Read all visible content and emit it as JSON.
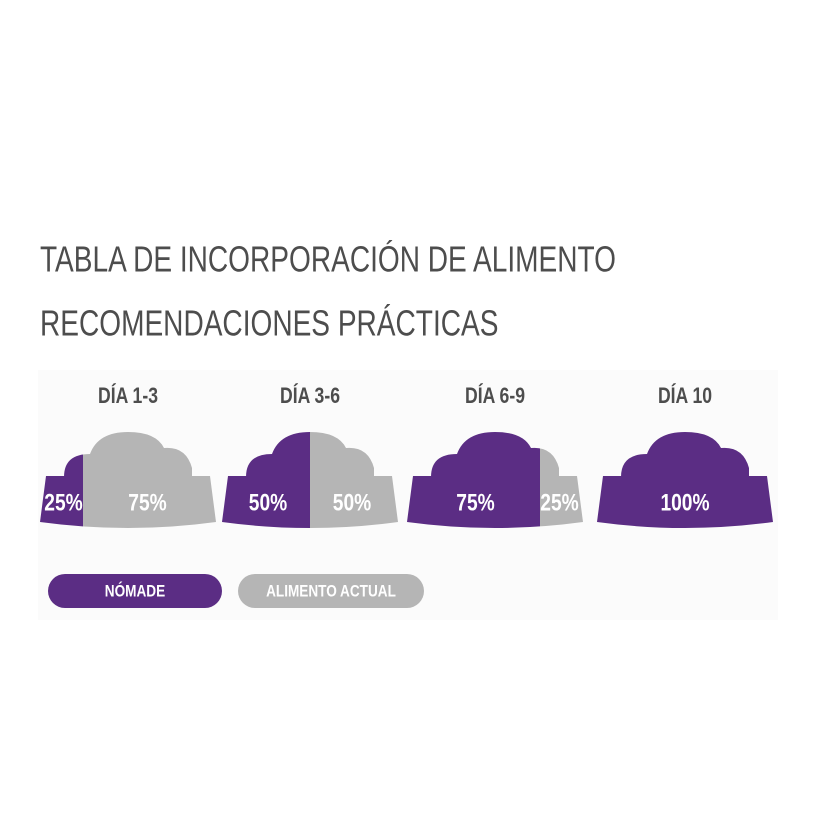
{
  "header": {
    "title": "TABLA DE INCORPORACIÓN DE ALIMENTO",
    "subtitle": "RECOMENDACIONES PRÁCTICAS"
  },
  "legend": [
    {
      "label": "NÓMADE",
      "color": "#5b2d84"
    },
    {
      "label": "ALIMENTO ACTUAL",
      "color": "#b5b5b5"
    }
  ],
  "bowls": [
    {
      "day": "DÍA 1-3",
      "segments": [
        {
          "value": 25,
          "label": "25%"
        },
        {
          "value": 75,
          "label": "75%"
        }
      ]
    },
    {
      "day": "DÍA 3-6",
      "segments": [
        {
          "value": 50,
          "label": "50%"
        },
        {
          "value": 50,
          "label": "50%"
        }
      ]
    },
    {
      "day": "DÍA 6-9",
      "segments": [
        {
          "value": 75,
          "label": "75%"
        },
        {
          "value": 25,
          "label": "25%"
        }
      ]
    },
    {
      "day": "DÍA 10",
      "segments": [
        {
          "value": 100,
          "label": "100%"
        }
      ]
    }
  ]
}
